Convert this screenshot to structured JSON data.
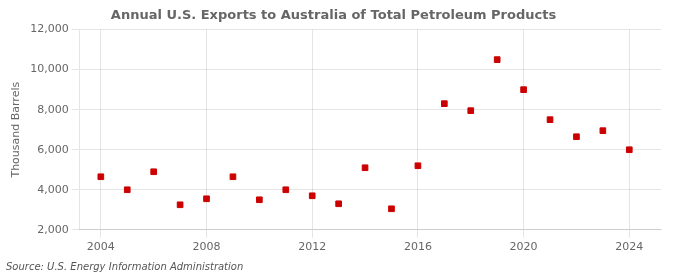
{
  "chart_data": {
    "type": "scatter",
    "title": "Annual U.S. Exports to Australia of Total Petroleum Products",
    "ylabel": "Thousand Barrels",
    "annotations": [
      "Source: U.S. Energy Information Administration"
    ],
    "x": [
      2004,
      2005,
      2006,
      2007,
      2008,
      2009,
      2010,
      2011,
      2012,
      2013,
      2014,
      2015,
      2016,
      2017,
      2018,
      2019,
      2020,
      2021,
      2022,
      2023,
      2024
    ],
    "values": [
      4650,
      4000,
      4900,
      3250,
      3550,
      4650,
      3500,
      4000,
      3700,
      3300,
      5100,
      3050,
      5200,
      8300,
      7950,
      10500,
      9000,
      7500,
      6650,
      6950,
      6000
    ],
    "color": "#cc0000",
    "marker": "square",
    "xlim": [
      2003.2,
      2025.2
    ],
    "xticks": [
      2004,
      2008,
      2012,
      2016,
      2020,
      2024
    ],
    "ylim": [
      2000,
      12000
    ],
    "yticks": [
      {
        "value": 2000,
        "label": "2,000"
      },
      {
        "value": 4000,
        "label": "4,000"
      },
      {
        "value": 6000,
        "label": "6,000"
      },
      {
        "value": 8000,
        "label": "8,000"
      },
      {
        "value": 10000,
        "label": "10,000"
      },
      {
        "value": 12000,
        "label": "12,000"
      }
    ],
    "grid": true
  }
}
